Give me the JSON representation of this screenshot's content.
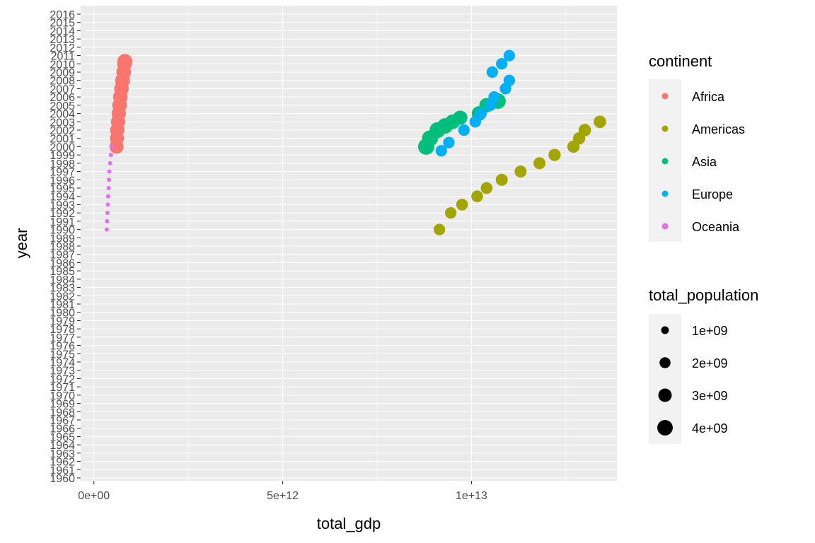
{
  "chart_data": {
    "type": "scatter",
    "xlabel": "total_gdp",
    "ylabel": "year",
    "xlim": [
      -350000000000.0,
      13850000000000.0
    ],
    "ylim": [
      1960,
      2016
    ],
    "x_ticks": [
      {
        "value": 0,
        "label": "0e+00"
      },
      {
        "value": 5000000000000,
        "label": "5e+12"
      },
      {
        "value": 10000000000000,
        "label": "1e+13"
      }
    ],
    "y_ticks": [
      1960,
      1961,
      1962,
      1963,
      1964,
      1965,
      1966,
      1967,
      1968,
      1969,
      1970,
      1971,
      1972,
      1973,
      1974,
      1975,
      1976,
      1977,
      1978,
      1979,
      1980,
      1981,
      1982,
      1983,
      1984,
      1985,
      1986,
      1987,
      1988,
      1989,
      1990,
      1991,
      1992,
      1993,
      1994,
      1995,
      1996,
      1997,
      1998,
      1999,
      2000,
      2001,
      2002,
      2003,
      2004,
      2005,
      2006,
      2007,
      2008,
      2009,
      2010,
      2011,
      2012,
      2013,
      2014,
      2015,
      2016
    ],
    "grid": true,
    "background": "#ebebeb",
    "series": [
      {
        "name": "Africa",
        "color": "#F8766D",
        "points": [
          {
            "x": 600000000000.0,
            "y": 2000,
            "pop": 3300000000.0
          },
          {
            "x": 610000000000.0,
            "y": 2001,
            "pop": 3300000000.0
          },
          {
            "x": 620000000000.0,
            "y": 2002,
            "pop": 3400000000.0
          },
          {
            "x": 640000000000.0,
            "y": 2003,
            "pop": 3400000000.0
          },
          {
            "x": 660000000000.0,
            "y": 2004,
            "pop": 3400000000.0
          },
          {
            "x": 680000000000.0,
            "y": 2005,
            "pop": 3500000000.0
          },
          {
            "x": 700000000000.0,
            "y": 2006,
            "pop": 3500000000.0
          },
          {
            "x": 730000000000.0,
            "y": 2007,
            "pop": 3500000000.0
          },
          {
            "x": 760000000000.0,
            "y": 2008,
            "pop": 3600000000.0
          },
          {
            "x": 790000000000.0,
            "y": 2009,
            "pop": 3600000000.0
          },
          {
            "x": 810000000000.0,
            "y": 2010,
            "pop": 3600000000.0
          },
          {
            "x": 820000000000.0,
            "y": 2010.3,
            "pop": 3700000000.0
          }
        ]
      },
      {
        "name": "Americas",
        "color": "#A3A500",
        "points": [
          {
            "x": 9150000000000.0,
            "y": 1990,
            "pop": 2200000000.0
          },
          {
            "x": 9450000000000.0,
            "y": 1992,
            "pop": 2200000000.0
          },
          {
            "x": 9750000000000.0,
            "y": 1993,
            "pop": 2300000000.0
          },
          {
            "x": 10150000000000.0,
            "y": 1994,
            "pop": 2300000000.0
          },
          {
            "x": 10400000000000.0,
            "y": 1995,
            "pop": 2300000000.0
          },
          {
            "x": 10800000000000.0,
            "y": 1996,
            "pop": 2400000000.0
          },
          {
            "x": 11300000000000.0,
            "y": 1997,
            "pop": 2400000000.0
          },
          {
            "x": 11800000000000.0,
            "y": 1998,
            "pop": 2400000000.0
          },
          {
            "x": 12200000000000.0,
            "y": 1999,
            "pop": 2500000000.0
          },
          {
            "x": 12700000000000.0,
            "y": 2000,
            "pop": 2500000000.0
          },
          {
            "x": 12850000000000.0,
            "y": 2001,
            "pop": 2500000000.0
          },
          {
            "x": 13000000000000.0,
            "y": 2002,
            "pop": 2600000000.0
          },
          {
            "x": 13400000000000.0,
            "y": 2003,
            "pop": 2600000000.0
          }
        ]
      },
      {
        "name": "Asia",
        "color": "#00BF7D",
        "points": [
          {
            "x": 8800000000000.0,
            "y": 2000,
            "pop": 4400000000.0
          },
          {
            "x": 8900000000000.0,
            "y": 2001,
            "pop": 4300000000.0
          },
          {
            "x": 9100000000000.0,
            "y": 2002,
            "pop": 4200000000.0
          },
          {
            "x": 9300000000000.0,
            "y": 2002.5,
            "pop": 4000000000.0
          },
          {
            "x": 9500000000000.0,
            "y": 2003,
            "pop": 3600000000.0
          },
          {
            "x": 9700000000000.0,
            "y": 2003.5,
            "pop": 3400000000.0
          },
          {
            "x": 10200000000000.0,
            "y": 2004,
            "pop": 3600000000.0
          },
          {
            "x": 10400000000000.0,
            "y": 2005,
            "pop": 3500000000.0
          },
          {
            "x": 10700000000000.0,
            "y": 2005.5,
            "pop": 4000000000.0
          }
        ]
      },
      {
        "name": "Europe",
        "color": "#00B0F6",
        "points": [
          {
            "x": 9200000000000.0,
            "y": 1999.5,
            "pop": 2200000000.0
          },
          {
            "x": 9400000000000.0,
            "y": 2000.5,
            "pop": 2200000000.0
          },
          {
            "x": 9800000000000.0,
            "y": 2002,
            "pop": 2200000000.0
          },
          {
            "x": 10100000000000.0,
            "y": 2003,
            "pop": 2200000000.0
          },
          {
            "x": 10250000000000.0,
            "y": 2004,
            "pop": 2200000000.0
          },
          {
            "x": 10500000000000.0,
            "y": 2005,
            "pop": 2200000000.0
          },
          {
            "x": 10600000000000.0,
            "y": 2006,
            "pop": 2200000000.0
          },
          {
            "x": 10900000000000.0,
            "y": 2007,
            "pop": 2200000000.0
          },
          {
            "x": 11000000000000.0,
            "y": 2008,
            "pop": 2200000000.0
          },
          {
            "x": 10550000000000.0,
            "y": 2009,
            "pop": 2200000000.0
          },
          {
            "x": 10800000000000.0,
            "y": 2010,
            "pop": 2200000000.0
          },
          {
            "x": 11000000000000.0,
            "y": 2011,
            "pop": 2200000000.0
          }
        ]
      },
      {
        "name": "Oceania",
        "color": "#E76BF3",
        "points": [
          {
            "x": 340000000000.0,
            "y": 1990,
            "pop": 20000000.0
          },
          {
            "x": 350000000000.0,
            "y": 1991,
            "pop": 20000000.0
          },
          {
            "x": 360000000000.0,
            "y": 1992,
            "pop": 21000000.0
          },
          {
            "x": 370000000000.0,
            "y": 1993,
            "pop": 21000000.0
          },
          {
            "x": 380000000000.0,
            "y": 1994,
            "pop": 22000000.0
          },
          {
            "x": 390000000000.0,
            "y": 1995,
            "pop": 22000000.0
          },
          {
            "x": 400000000000.0,
            "y": 1996,
            "pop": 23000000.0
          },
          {
            "x": 410000000000.0,
            "y": 1997,
            "pop": 23000000.0
          },
          {
            "x": 430000000000.0,
            "y": 1998,
            "pop": 24000000.0
          },
          {
            "x": 450000000000.0,
            "y": 1999,
            "pop": 24000000.0
          },
          {
            "x": 470000000000.0,
            "y": 2000,
            "pop": 25000000.0
          }
        ]
      }
    ],
    "legend": {
      "placement": "right",
      "color_title": "continent",
      "color_entries": [
        "Africa",
        "Americas",
        "Asia",
        "Europe",
        "Oceania"
      ],
      "size_title": "total_population",
      "size_entries": [
        {
          "label": "1e+09",
          "value": 1000000000.0
        },
        {
          "label": "2e+09",
          "value": 2000000000.0
        },
        {
          "label": "3e+09",
          "value": 3000000000.0
        },
        {
          "label": "4e+09",
          "value": 4000000000.0
        }
      ]
    }
  }
}
